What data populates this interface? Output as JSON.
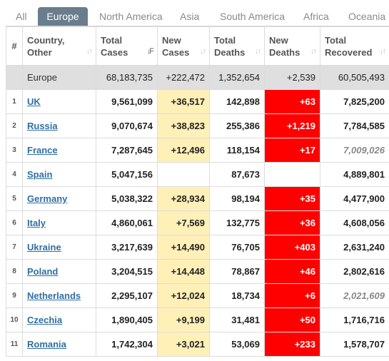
{
  "tabs": [
    {
      "label": "All",
      "active": false
    },
    {
      "label": "Europe",
      "active": true
    },
    {
      "label": "North America",
      "active": false
    },
    {
      "label": "Asia",
      "active": false
    },
    {
      "label": "South America",
      "active": false
    },
    {
      "label": "Africa",
      "active": false
    },
    {
      "label": "Oceania",
      "active": false
    }
  ],
  "table": {
    "headers": {
      "num": "#",
      "country_line1": "Country,",
      "country_line2": "Other",
      "total_cases_line1": "Total",
      "total_cases_line2": "Cases",
      "new_cases_line1": "New",
      "new_cases_line2": "Cases",
      "total_deaths_line1": "Total",
      "total_deaths_line2": "Deaths",
      "new_deaths_line1": "New",
      "new_deaths_line2": "Deaths",
      "total_recovered_line1": "Total",
      "total_recovered_line2": "Recovered"
    },
    "total": {
      "country": "Europe",
      "total_cases": "68,183,735",
      "new_cases": "+222,472",
      "total_deaths": "1,352,654",
      "new_deaths": "+2,539",
      "total_recovered": "60,505,493"
    },
    "rows": [
      {
        "idx": "1",
        "country": "UK",
        "total_cases": "9,561,099",
        "new_cases": "+36,517",
        "total_deaths": "142,898",
        "new_deaths": "+63",
        "total_recovered": "7,825,200",
        "recovered_italic": false
      },
      {
        "idx": "2",
        "country": "Russia",
        "total_cases": "9,070,674",
        "new_cases": "+38,823",
        "total_deaths": "255,386",
        "new_deaths": "+1,219",
        "total_recovered": "7,784,585",
        "recovered_italic": false
      },
      {
        "idx": "3",
        "country": "France",
        "total_cases": "7,287,645",
        "new_cases": "+12,496",
        "total_deaths": "118,154",
        "new_deaths": "+17",
        "total_recovered": "7,009,026",
        "recovered_italic": true
      },
      {
        "idx": "4",
        "country": "Spain",
        "total_cases": "5,047,156",
        "new_cases": "",
        "total_deaths": "87,673",
        "new_deaths": "",
        "total_recovered": "4,889,801",
        "recovered_italic": false
      },
      {
        "idx": "5",
        "country": "Germany",
        "total_cases": "5,038,322",
        "new_cases": "+28,934",
        "total_deaths": "98,194",
        "new_deaths": "+35",
        "total_recovered": "4,477,900",
        "recovered_italic": false
      },
      {
        "idx": "6",
        "country": "Italy",
        "total_cases": "4,860,061",
        "new_cases": "+7,569",
        "total_deaths": "132,775",
        "new_deaths": "+36",
        "total_recovered": "4,608,056",
        "recovered_italic": false
      },
      {
        "idx": "7",
        "country": "Ukraine",
        "total_cases": "3,217,639",
        "new_cases": "+14,490",
        "total_deaths": "76,705",
        "new_deaths": "+403",
        "total_recovered": "2,631,240",
        "recovered_italic": false
      },
      {
        "idx": "8",
        "country": "Poland",
        "total_cases": "3,204,515",
        "new_cases": "+14,448",
        "total_deaths": "78,867",
        "new_deaths": "+46",
        "total_recovered": "2,802,616",
        "recovered_italic": false
      },
      {
        "idx": "9",
        "country": "Netherlands",
        "total_cases": "2,295,107",
        "new_cases": "+12,024",
        "total_deaths": "18,734",
        "new_deaths": "+6",
        "total_recovered": "2,021,609",
        "recovered_italic": true
      },
      {
        "idx": "10",
        "country": "Czechia",
        "total_cases": "1,890,405",
        "new_cases": "+9,199",
        "total_deaths": "31,481",
        "new_deaths": "+50",
        "total_recovered": "1,716,716",
        "recovered_italic": false
      },
      {
        "idx": "11",
        "country": "Romania",
        "total_cases": "1,742,304",
        "new_cases": "+3,021",
        "total_deaths": "53,069",
        "new_deaths": "+233",
        "total_recovered": "1,578,707",
        "recovered_italic": false
      }
    ]
  },
  "icons": {
    "sort_inactive": "sort-icon",
    "sort_active": "sort-descending-icon"
  },
  "colors": {
    "active_tab": "#6a7d8c",
    "new_cases_bg": "#fff0b8",
    "new_deaths_bg": "#ff0000",
    "country_link": "#2f6fa3",
    "total_row_bg": "#dfdfdf"
  }
}
